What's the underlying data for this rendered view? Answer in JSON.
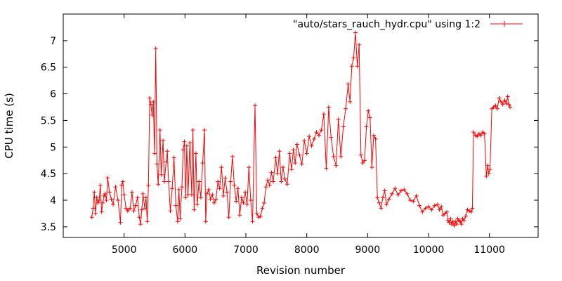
{
  "chart_data": {
    "type": "line",
    "xlabel": "Revision number",
    "ylabel": "CPU time (s)",
    "xlim": [
      4000,
      11800
    ],
    "ylim": [
      3.3,
      7.5
    ],
    "xticks": [
      "5000",
      "6000",
      "7000",
      "8000",
      "9000",
      "10000",
      "11000"
    ],
    "yticks": [
      "3.5",
      "4",
      "4.5",
      "5",
      "5.5",
      "6",
      "6.5",
      "7"
    ],
    "grid": false,
    "legend_position": "top-right",
    "series": [
      {
        "name": "\"auto/stars_rauch_hydr.cpu\" using 1:2",
        "color": "#ff0000",
        "marker": "plus",
        "points": [
          [
            4470,
            3.68
          ],
          [
            4490,
            3.85
          ],
          [
            4510,
            4.15
          ],
          [
            4530,
            3.75
          ],
          [
            4550,
            4.05
          ],
          [
            4570,
            3.95
          ],
          [
            4590,
            4.0
          ],
          [
            4610,
            4.28
          ],
          [
            4630,
            3.78
          ],
          [
            4650,
            3.95
          ],
          [
            4670,
            4.08
          ],
          [
            4690,
            4.12
          ],
          [
            4710,
            4.0
          ],
          [
            4730,
            4.42
          ],
          [
            4760,
            4.15
          ],
          [
            4790,
            4.02
          ],
          [
            4820,
            3.92
          ],
          [
            4860,
            4.25
          ],
          [
            4900,
            4.0
          ],
          [
            4940,
            3.58
          ],
          [
            4960,
            4.28
          ],
          [
            4980,
            4.35
          ],
          [
            5000,
            4.1
          ],
          [
            5030,
            3.85
          ],
          [
            5060,
            3.8
          ],
          [
            5100,
            3.85
          ],
          [
            5130,
            4.15
          ],
          [
            5160,
            3.8
          ],
          [
            5190,
            3.9
          ],
          [
            5220,
            4.05
          ],
          [
            5250,
            3.68
          ],
          [
            5270,
            3.55
          ],
          [
            5290,
            3.82
          ],
          [
            5310,
            4.12
          ],
          [
            5340,
            3.85
          ],
          [
            5360,
            4.05
          ],
          [
            5380,
            3.6
          ],
          [
            5400,
            4.28
          ],
          [
            5420,
            5.92
          ],
          [
            5440,
            5.8
          ],
          [
            5460,
            5.6
          ],
          [
            5480,
            5.85
          ],
          [
            5500,
            4.88
          ],
          [
            5520,
            6.85
          ],
          [
            5540,
            4.68
          ],
          [
            5560,
            4.3
          ],
          [
            5590,
            5.32
          ],
          [
            5610,
            4.48
          ],
          [
            5640,
            5.12
          ],
          [
            5660,
            4.35
          ],
          [
            5690,
            4.72
          ],
          [
            5710,
            4.92
          ],
          [
            5730,
            4.35
          ],
          [
            5760,
            3.8
          ],
          [
            5790,
            4.22
          ],
          [
            5820,
            4.8
          ],
          [
            5850,
            3.9
          ],
          [
            5880,
            3.6
          ],
          [
            5900,
            4.2
          ],
          [
            5920,
            3.65
          ],
          [
            5950,
            4.25
          ],
          [
            5970,
            4.95
          ],
          [
            5990,
            5.1
          ],
          [
            6010,
            4.05
          ],
          [
            6030,
            5.02
          ],
          [
            6050,
            4.1
          ],
          [
            6080,
            5.08
          ],
          [
            6110,
            4.1
          ],
          [
            6130,
            5.32
          ],
          [
            6150,
            3.82
          ],
          [
            6180,
            4.88
          ],
          [
            6200,
            3.92
          ],
          [
            6230,
            4.35
          ],
          [
            6260,
            4.05
          ],
          [
            6290,
            4.7
          ],
          [
            6320,
            5.32
          ],
          [
            6340,
            3.6
          ],
          [
            6360,
            4.12
          ],
          [
            6390,
            4.2
          ],
          [
            6420,
            4.02
          ],
          [
            6450,
            4.1
          ],
          [
            6480,
            3.95
          ],
          [
            6510,
            4.02
          ],
          [
            6540,
            4.35
          ],
          [
            6570,
            4.22
          ],
          [
            6600,
            4.62
          ],
          [
            6630,
            4.08
          ],
          [
            6660,
            4.42
          ],
          [
            6690,
            4.15
          ],
          [
            6720,
            3.68
          ],
          [
            6750,
            4.35
          ],
          [
            6780,
            4.82
          ],
          [
            6810,
            4.28
          ],
          [
            6840,
            3.98
          ],
          [
            6870,
            4.22
          ],
          [
            6900,
            3.72
          ],
          [
            6930,
            4.05
          ],
          [
            6960,
            3.95
          ],
          [
            6990,
            4.15
          ],
          [
            7020,
            3.92
          ],
          [
            7050,
            4.62
          ],
          [
            7080,
            4.0
          ],
          [
            7110,
            3.6
          ],
          [
            7150,
            5.78
          ],
          [
            7180,
            3.75
          ],
          [
            7210,
            3.68
          ],
          [
            7240,
            3.7
          ],
          [
            7270,
            3.85
          ],
          [
            7300,
            3.95
          ],
          [
            7330,
            4.25
          ],
          [
            7360,
            4.38
          ],
          [
            7390,
            4.28
          ],
          [
            7420,
            4.52
          ],
          [
            7450,
            4.35
          ],
          [
            7490,
            4.8
          ],
          [
            7520,
            4.5
          ],
          [
            7550,
            4.92
          ],
          [
            7580,
            4.35
          ],
          [
            7610,
            4.62
          ],
          [
            7640,
            4.4
          ],
          [
            7680,
            4.3
          ],
          [
            7720,
            4.88
          ],
          [
            7750,
            4.58
          ],
          [
            7780,
            4.95
          ],
          [
            7810,
            4.7
          ],
          [
            7840,
            5.05
          ],
          [
            7880,
            4.85
          ],
          [
            7920,
            4.68
          ],
          [
            7960,
            5.12
          ],
          [
            8000,
            4.88
          ],
          [
            8040,
            5.2
          ],
          [
            8080,
            5.02
          ],
          [
            8120,
            5.15
          ],
          [
            8160,
            5.28
          ],
          [
            8200,
            5.22
          ],
          [
            8240,
            5.32
          ],
          [
            8280,
            5.62
          ],
          [
            8320,
            4.6
          ],
          [
            8360,
            5.75
          ],
          [
            8400,
            5.18
          ],
          [
            8440,
            4.82
          ],
          [
            8480,
            4.65
          ],
          [
            8520,
            5.52
          ],
          [
            8560,
            4.82
          ],
          [
            8600,
            5.38
          ],
          [
            8640,
            5.72
          ],
          [
            8680,
            6.18
          ],
          [
            8710,
            5.85
          ],
          [
            8740,
            6.52
          ],
          [
            8770,
            6.68
          ],
          [
            8800,
            7.15
          ],
          [
            8830,
            6.52
          ],
          [
            8860,
            6.92
          ],
          [
            8890,
            4.85
          ],
          [
            8920,
            4.7
          ],
          [
            8950,
            4.75
          ],
          [
            8980,
            5.38
          ],
          [
            9010,
            5.68
          ],
          [
            9040,
            5.55
          ],
          [
            9070,
            4.62
          ],
          [
            9100,
            5.22
          ],
          [
            9130,
            5.15
          ],
          [
            9160,
            4.05
          ],
          [
            9190,
            3.95
          ],
          [
            9220,
            3.85
          ],
          [
            9250,
            4.05
          ],
          [
            9280,
            4.18
          ],
          [
            9310,
            3.92
          ],
          [
            9350,
            4.02
          ],
          [
            9400,
            4.12
          ],
          [
            9450,
            4.22
          ],
          [
            9500,
            4.1
          ],
          [
            9550,
            4.18
          ],
          [
            9600,
            4.2
          ],
          [
            9650,
            4.12
          ],
          [
            9700,
            4.0
          ],
          [
            9750,
            3.98
          ],
          [
            9800,
            4.08
          ],
          [
            9850,
            3.9
          ],
          [
            9900,
            3.78
          ],
          [
            9950,
            3.85
          ],
          [
            10000,
            3.88
          ],
          [
            10050,
            3.82
          ],
          [
            10100,
            3.9
          ],
          [
            10150,
            3.92
          ],
          [
            10180,
            3.82
          ],
          [
            10210,
            3.88
          ],
          [
            10240,
            3.72
          ],
          [
            10270,
            3.75
          ],
          [
            10300,
            3.78
          ],
          [
            10320,
            3.62
          ],
          [
            10340,
            3.58
          ],
          [
            10360,
            3.65
          ],
          [
            10380,
            3.55
          ],
          [
            10400,
            3.6
          ],
          [
            10420,
            3.52
          ],
          [
            10440,
            3.6
          ],
          [
            10460,
            3.55
          ],
          [
            10480,
            3.65
          ],
          [
            10500,
            3.62
          ],
          [
            10520,
            3.6
          ],
          [
            10540,
            3.55
          ],
          [
            10560,
            3.65
          ],
          [
            10580,
            3.62
          ],
          [
            10610,
            3.7
          ],
          [
            10640,
            3.82
          ],
          [
            10670,
            3.8
          ],
          [
            10700,
            3.78
          ],
          [
            10720,
            3.85
          ],
          [
            10740,
            5.28
          ],
          [
            10770,
            5.22
          ],
          [
            10800,
            5.2
          ],
          [
            10830,
            5.25
          ],
          [
            10860,
            5.22
          ],
          [
            10890,
            5.28
          ],
          [
            10920,
            5.25
          ],
          [
            10950,
            4.45
          ],
          [
            10970,
            4.65
          ],
          [
            10990,
            4.5
          ],
          [
            11010,
            4.58
          ],
          [
            11040,
            5.72
          ],
          [
            11070,
            5.75
          ],
          [
            11100,
            5.78
          ],
          [
            11130,
            5.72
          ],
          [
            11160,
            5.92
          ],
          [
            11190,
            5.85
          ],
          [
            11220,
            5.8
          ],
          [
            11250,
            5.88
          ],
          [
            11280,
            5.82
          ],
          [
            11300,
            5.95
          ],
          [
            11320,
            5.8
          ],
          [
            11340,
            5.75
          ]
        ]
      }
    ]
  }
}
